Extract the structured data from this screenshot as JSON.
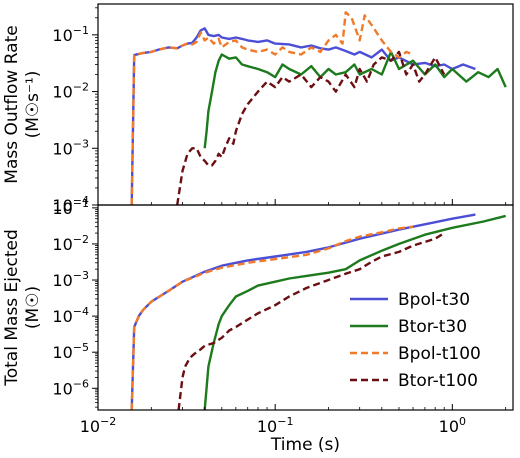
{
  "chart_data": [
    {
      "type": "line",
      "ylabel_line1": "Mass Outflow Rate",
      "ylabel_line2": "(M☉s⁻¹)",
      "yscale": "log",
      "xscale": "log",
      "xlim": [
        0.01,
        2.2
      ],
      "ylim": [
        0.0001,
        0.35
      ],
      "yticks": [
        {
          "value": 0.1,
          "base": "10",
          "exp": "−1"
        },
        {
          "value": 0.01,
          "base": "10",
          "exp": "−2"
        },
        {
          "value": 0.001,
          "base": "10",
          "exp": "−3"
        },
        {
          "value": 0.0001,
          "base": "10",
          "exp": "−4"
        }
      ],
      "series": [
        {
          "name": "Bpol-t30",
          "color": "#4c4fd6",
          "dash": "solid",
          "x": [
            0.0155,
            0.016,
            0.018,
            0.02,
            0.022,
            0.025,
            0.028,
            0.03,
            0.032,
            0.034,
            0.036,
            0.038,
            0.04,
            0.042,
            0.045,
            0.048,
            0.05,
            0.055,
            0.06,
            0.065,
            0.07,
            0.08,
            0.09,
            0.1,
            0.12,
            0.14,
            0.16,
            0.18,
            0.2,
            0.22,
            0.25,
            0.28,
            0.3,
            0.35,
            0.4,
            0.45,
            0.5,
            0.6,
            0.7,
            0.8,
            0.9,
            1.0,
            1.15,
            1.35
          ],
          "y": [
            0.0001,
            0.044,
            0.048,
            0.05,
            0.055,
            0.06,
            0.058,
            0.065,
            0.07,
            0.072,
            0.09,
            0.12,
            0.13,
            0.1,
            0.095,
            0.1,
            0.09,
            0.085,
            0.09,
            0.085,
            0.08,
            0.075,
            0.08,
            0.07,
            0.068,
            0.06,
            0.065,
            0.058,
            0.055,
            0.06,
            0.052,
            0.045,
            0.05,
            0.04,
            0.055,
            0.035,
            0.04,
            0.03,
            0.032,
            0.028,
            0.03,
            0.025,
            0.03,
            0.025
          ]
        },
        {
          "name": "Btor-t30",
          "color": "#1d7a1d",
          "dash": "solid",
          "x": [
            0.04,
            0.041,
            0.042,
            0.044,
            0.046,
            0.048,
            0.05,
            0.055,
            0.06,
            0.065,
            0.07,
            0.08,
            0.09,
            0.1,
            0.11,
            0.12,
            0.14,
            0.16,
            0.18,
            0.2,
            0.22,
            0.25,
            0.28,
            0.3,
            0.35,
            0.4,
            0.45,
            0.5,
            0.6,
            0.7,
            0.8,
            0.9,
            1.0,
            1.2,
            1.4,
            1.6,
            1.8,
            2.0
          ],
          "y": [
            0.001,
            0.002,
            0.0045,
            0.01,
            0.022,
            0.035,
            0.045,
            0.038,
            0.04,
            0.03,
            0.028,
            0.025,
            0.022,
            0.018,
            0.03,
            0.025,
            0.02,
            0.028,
            0.018,
            0.025,
            0.02,
            0.022,
            0.03,
            0.02,
            0.025,
            0.02,
            0.05,
            0.025,
            0.035,
            0.02,
            0.03,
            0.018,
            0.025,
            0.015,
            0.022,
            0.018,
            0.025,
            0.012
          ]
        },
        {
          "name": "Bpol-t100",
          "color": "#f07a2a",
          "dash": "dashed",
          "x": [
            0.0155,
            0.016,
            0.018,
            0.02,
            0.022,
            0.025,
            0.028,
            0.03,
            0.032,
            0.034,
            0.036,
            0.038,
            0.04,
            0.042,
            0.045,
            0.048,
            0.05,
            0.055,
            0.06,
            0.065,
            0.07,
            0.08,
            0.09,
            0.1,
            0.11,
            0.12,
            0.14,
            0.16,
            0.18,
            0.2,
            0.22,
            0.24,
            0.25,
            0.27,
            0.3,
            0.32,
            0.35,
            0.4,
            0.45,
            0.5,
            0.55,
            0.6
          ],
          "y": [
            0.0001,
            0.044,
            0.048,
            0.05,
            0.055,
            0.06,
            0.058,
            0.065,
            0.07,
            0.068,
            0.075,
            0.11,
            0.08,
            0.09,
            0.07,
            0.085,
            0.06,
            0.075,
            0.08,
            0.06,
            0.055,
            0.05,
            0.055,
            0.045,
            0.06,
            0.05,
            0.045,
            0.06,
            0.05,
            0.08,
            0.1,
            0.07,
            0.25,
            0.2,
            0.08,
            0.22,
            0.15,
            0.08,
            0.05,
            0.04,
            0.05,
            0.045
          ]
        },
        {
          "name": "Btor-t100",
          "color": "#6b0f12",
          "dash": "dashed",
          "x": [
            0.028,
            0.03,
            0.032,
            0.034,
            0.036,
            0.038,
            0.04,
            0.042,
            0.044,
            0.046,
            0.048,
            0.05,
            0.052,
            0.055,
            0.058,
            0.06,
            0.065,
            0.07,
            0.08,
            0.09,
            0.1,
            0.11,
            0.12,
            0.14,
            0.16,
            0.18,
            0.2,
            0.22,
            0.25,
            0.28,
            0.3,
            0.33,
            0.36,
            0.4,
            0.45,
            0.5,
            0.55,
            0.6,
            0.65,
            0.7,
            0.8,
            0.9
          ],
          "y": [
            0.0001,
            0.0004,
            0.0008,
            0.001,
            0.001,
            0.0007,
            0.0006,
            0.0005,
            0.0005,
            0.0006,
            0.0008,
            0.0007,
            0.001,
            0.0015,
            0.0012,
            0.002,
            0.004,
            0.006,
            0.01,
            0.015,
            0.012,
            0.018,
            0.015,
            0.02,
            0.012,
            0.018,
            0.015,
            0.01,
            0.02,
            0.012,
            0.025,
            0.015,
            0.03,
            0.04,
            0.035,
            0.05,
            0.02,
            0.03,
            0.015,
            0.02,
            0.04,
            0.02
          ]
        }
      ]
    },
    {
      "type": "line",
      "ylabel_line1": "Total Mass Ejected",
      "ylabel_line2": "(M☉)",
      "xlabel": "Time (s)",
      "yscale": "log",
      "xscale": "log",
      "xlim": [
        0.01,
        2.2
      ],
      "ylim": [
        2.5e-07,
        0.12
      ],
      "xticks": [
        {
          "value": 0.01,
          "base": "10",
          "exp": "−2"
        },
        {
          "value": 0.1,
          "base": "10",
          "exp": "−1"
        },
        {
          "value": 1,
          "base": "10",
          "exp": "0"
        }
      ],
      "yticks": [
        {
          "value": 0.1,
          "base": "10",
          "exp": "−1"
        },
        {
          "value": 0.01,
          "base": "10",
          "exp": "−2"
        },
        {
          "value": 0.001,
          "base": "10",
          "exp": "−3"
        },
        {
          "value": 0.0001,
          "base": "10",
          "exp": "−4"
        },
        {
          "value": 1e-05,
          "base": "10",
          "exp": "−5"
        },
        {
          "value": 1e-06,
          "base": "10",
          "exp": "−6"
        }
      ],
      "legend_position": "lower-right",
      "series": [
        {
          "name": "Bpol-t30",
          "color": "#4c4fd6",
          "dash": "solid",
          "x": [
            0.0155,
            0.016,
            0.017,
            0.018,
            0.02,
            0.025,
            0.03,
            0.04,
            0.05,
            0.07,
            0.1,
            0.15,
            0.2,
            0.3,
            0.5,
            0.7,
            1.0,
            1.35
          ],
          "y": [
            2.5e-07,
            5e-05,
            0.0001,
            0.00015,
            0.00025,
            0.0005,
            0.0009,
            0.0017,
            0.0025,
            0.0035,
            0.0045,
            0.006,
            0.008,
            0.014,
            0.025,
            0.035,
            0.05,
            0.065
          ]
        },
        {
          "name": "Btor-t30",
          "color": "#1d7a1d",
          "dash": "solid",
          "x": [
            0.04,
            0.042,
            0.045,
            0.048,
            0.05,
            0.055,
            0.06,
            0.07,
            0.08,
            0.1,
            0.12,
            0.15,
            0.2,
            0.25,
            0.3,
            0.4,
            0.5,
            0.7,
            1.0,
            1.5,
            2.0
          ],
          "y": [
            2.5e-07,
            4e-06,
            1.8e-05,
            6e-05,
            0.0001,
            0.0002,
            0.00035,
            0.0005,
            0.0007,
            0.0009,
            0.0011,
            0.0013,
            0.0016,
            0.002,
            0.0035,
            0.0065,
            0.01,
            0.018,
            0.028,
            0.042,
            0.06
          ]
        },
        {
          "name": "Bpol-t100",
          "color": "#f07a2a",
          "dash": "dashed",
          "x": [
            0.0155,
            0.016,
            0.017,
            0.018,
            0.02,
            0.025,
            0.03,
            0.04,
            0.05,
            0.07,
            0.1,
            0.15,
            0.2,
            0.25,
            0.3,
            0.4,
            0.5,
            0.6
          ],
          "y": [
            2.5e-07,
            5e-05,
            0.0001,
            0.00015,
            0.00025,
            0.0005,
            0.0009,
            0.0016,
            0.0022,
            0.003,
            0.0038,
            0.005,
            0.0075,
            0.012,
            0.016,
            0.021,
            0.027,
            0.03
          ]
        },
        {
          "name": "Btor-t100",
          "color": "#6b0f12",
          "dash": "dashed",
          "x": [
            0.0285,
            0.029,
            0.03,
            0.031,
            0.033,
            0.035,
            0.038,
            0.04,
            0.045,
            0.05,
            0.055,
            0.06,
            0.07,
            0.08,
            0.1,
            0.12,
            0.15,
            0.2,
            0.25,
            0.3,
            0.35,
            0.4,
            0.5,
            0.6,
            0.8,
            0.9
          ],
          "y": [
            2.5e-07,
            5e-07,
            2e-06,
            4e-06,
            7e-06,
            9e-06,
            1.2e-05,
            1.5e-05,
            1.8e-05,
            2.5e-05,
            4e-05,
            5e-05,
            8e-05,
            0.00012,
            0.0002,
            0.00035,
            0.0006,
            0.001,
            0.0015,
            0.002,
            0.0032,
            0.0045,
            0.006,
            0.009,
            0.014,
            0.02
          ]
        }
      ]
    }
  ]
}
